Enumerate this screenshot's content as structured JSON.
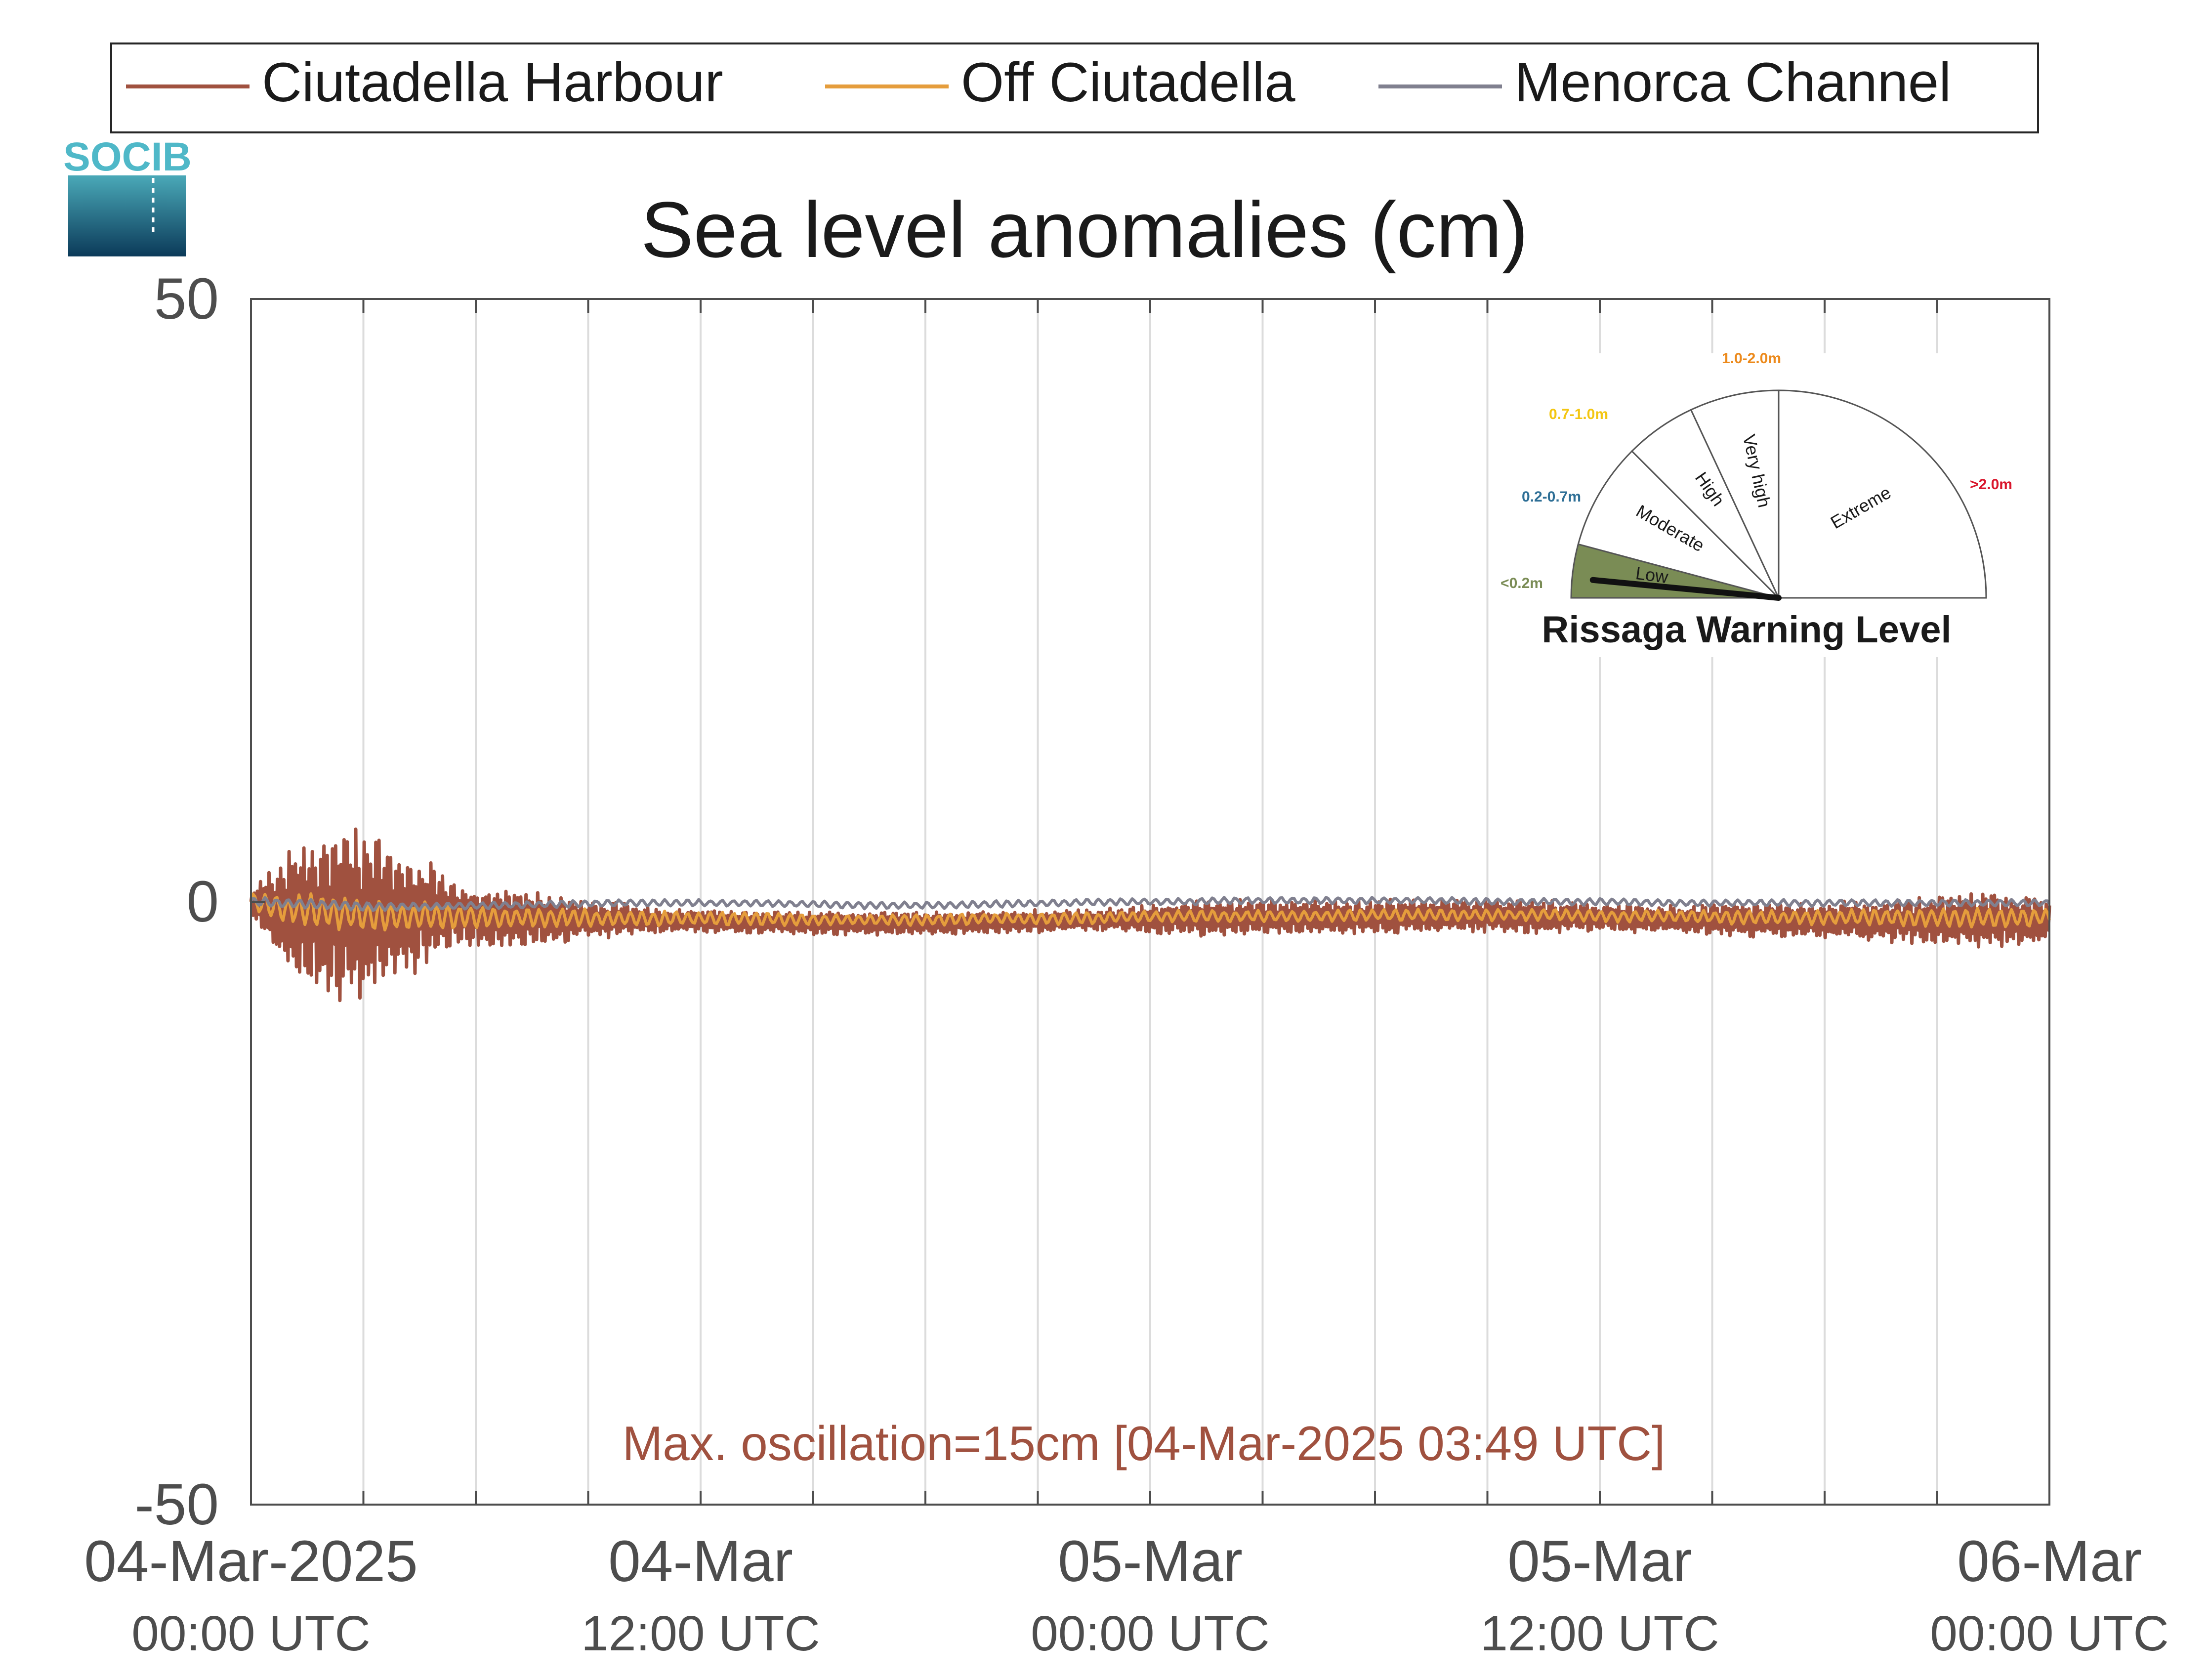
{
  "chart_data": {
    "type": "line",
    "title": "Sea level anomalies (cm)",
    "ylim": [
      -50,
      50
    ],
    "yticks": [
      {
        "value": 50,
        "label": "50"
      },
      {
        "value": 0,
        "label": "0"
      },
      {
        "value": -50,
        "label": "-50"
      }
    ],
    "xlim_hours": [
      0,
      58
    ],
    "xticks": [
      {
        "hour": 0,
        "line1": "04-Mar-2025",
        "line2": "00:00 UTC"
      },
      {
        "hour": 14.5,
        "line1": "04-Mar",
        "line2": "12:00 UTC"
      },
      {
        "hour": 29,
        "line1": "05-Mar",
        "line2": "00:00 UTC"
      },
      {
        "hour": 43.5,
        "line1": "05-Mar",
        "line2": "12:00 UTC"
      },
      {
        "hour": 58,
        "line1": "06-Mar",
        "line2": "00:00 UTC"
      }
    ],
    "grid": "vertical",
    "legend_position": "top",
    "series": [
      {
        "name": "Ciutadella Harbour",
        "color": "#a0513f",
        "x_hours": [
          0,
          0.5,
          1,
          1.5,
          2,
          2.5,
          3,
          3.5,
          3.8,
          4,
          4.5,
          5,
          5.5,
          6,
          6.5,
          7,
          8,
          9,
          10,
          11,
          12,
          13,
          14,
          15,
          16,
          18,
          20,
          22,
          24,
          26,
          28,
          30,
          32,
          34,
          36,
          38,
          40,
          42,
          44,
          46,
          48,
          50,
          52,
          54,
          56,
          58
        ],
        "center": [
          0,
          -0.5,
          -0.8,
          -1,
          -1,
          -1,
          -1,
          -1,
          -1,
          -1,
          -1,
          -1,
          -1,
          -1,
          -1.2,
          -1.2,
          -1.4,
          -1.4,
          -1.5,
          -1.5,
          -1.5,
          -1.6,
          -1.6,
          -1.6,
          -1.7,
          -1.8,
          -1.8,
          -1.8,
          -1.7,
          -1.6,
          -1.5,
          -1.4,
          -1.3,
          -1.3,
          -1.3,
          -1.2,
          -1.2,
          -1.3,
          -1.4,
          -1.5,
          -1.5,
          -1.6,
          -1.6,
          -1.6,
          -1.6,
          -1.6
        ],
        "amplitude": [
          1,
          3,
          5,
          6.5,
          7,
          7.5,
          7.5,
          7.5,
          7.5,
          7,
          6,
          5.5,
          5,
          4,
          3,
          2.5,
          2.5,
          2.5,
          2,
          1.5,
          1.5,
          1.2,
          1,
          1,
          1,
          1,
          1,
          1,
          1,
          1,
          1,
          1.5,
          1.5,
          1.5,
          1.5,
          1.5,
          1.5,
          1.5,
          1.2,
          1.2,
          1.5,
          1.5,
          1.8,
          2,
          2.5,
          2
        ]
      },
      {
        "name": "Off Ciutadella",
        "color": "#e59d3c",
        "x_hours": [
          0,
          1,
          2,
          3,
          4,
          5,
          6,
          7,
          8,
          10,
          12,
          14,
          16,
          18,
          20,
          22,
          24,
          26,
          28,
          30,
          32,
          34,
          36,
          38,
          40,
          42,
          44,
          46,
          48,
          50,
          52,
          54,
          56,
          58
        ],
        "center": [
          0,
          -0.5,
          -0.8,
          -1,
          -1.2,
          -1.2,
          -1.2,
          -1.2,
          -1.3,
          -1.3,
          -1.4,
          -1.4,
          -1.4,
          -1.5,
          -1.5,
          -1.5,
          -1.4,
          -1.4,
          -1.3,
          -1.2,
          -1.2,
          -1.2,
          -1.1,
          -1.1,
          -1.1,
          -1.1,
          -1.2,
          -1.2,
          -1.3,
          -1.3,
          -1.3,
          -1.3,
          -1.3,
          -1.3
        ],
        "amplitude": [
          0.8,
          1.2,
          1.5,
          1.5,
          1.5,
          1.3,
          1.2,
          1,
          0.9,
          0.8,
          0.7,
          0.6,
          0.6,
          0.5,
          0.5,
          0.5,
          0.5,
          0.5,
          0.5,
          0.5,
          0.5,
          0.5,
          0.5,
          0.5,
          0.5,
          0.5,
          0.5,
          0.5,
          0.6,
          0.6,
          0.7,
          0.8,
          0.8,
          0.8
        ]
      },
      {
        "name": "Menorca Channel",
        "color": "#80808f",
        "x_hours": [
          0,
          2,
          4,
          6,
          8,
          10,
          12,
          14,
          16,
          18,
          20,
          22,
          24,
          26,
          28,
          30,
          32,
          34,
          36,
          38,
          40,
          42,
          44,
          46,
          48,
          50,
          52,
          54,
          56,
          58
        ],
        "center": [
          0,
          -0.2,
          -0.4,
          -0.4,
          -0.3,
          -0.2,
          -0.1,
          -0.1,
          -0.1,
          -0.2,
          -0.3,
          -0.3,
          -0.2,
          -0.1,
          0,
          0,
          0.1,
          0.1,
          0.1,
          0.1,
          0,
          0,
          0,
          -0.1,
          -0.1,
          -0.1,
          -0.1,
          -0.1,
          -0.1,
          -0.1
        ],
        "amplitude": [
          0.4,
          0.4,
          0.4,
          0.3,
          0.3,
          0.3,
          0.3,
          0.3,
          0.3,
          0.3,
          0.3,
          0.3,
          0.3,
          0.3,
          0.3,
          0.3,
          0.3,
          0.3,
          0.3,
          0.3,
          0.3,
          0.3,
          0.3,
          0.3,
          0.3,
          0.3,
          0.3,
          0.3,
          0.3,
          0.3
        ]
      }
    ],
    "annotation": {
      "text": "Max. oscillation=15cm [04-Mar-2025 03:49 UTC]",
      "color": "#a0513f"
    },
    "gauge": {
      "title": "Rissaga Warning Level",
      "needle_level": "Low",
      "sectors": [
        {
          "label": "Low",
          "range": "<0.2m",
          "color": "#7a8c55",
          "range_color": "#7a8c55"
        },
        {
          "label": "Moderate",
          "range": "0.2-0.7m",
          "color": "#ffffff",
          "range_color": "#2e6f96"
        },
        {
          "label": "High",
          "range": "0.7-1.0m",
          "color": "#ffffff",
          "range_color": "#f3c612"
        },
        {
          "label": "Very high",
          "range": "1.0-2.0m",
          "color": "#ffffff",
          "range_color": "#ec8a1c"
        },
        {
          "label": "Extreme",
          "range": ">2.0m",
          "color": "#ffffff",
          "range_color": "#d9162c"
        }
      ]
    }
  },
  "logo": {
    "text": "SOCIB",
    "color": "#4fb8c8"
  },
  "colors": {
    "axis": "#262626",
    "grid": "#dcdcdc",
    "tick_text": "#4d4d4d"
  }
}
